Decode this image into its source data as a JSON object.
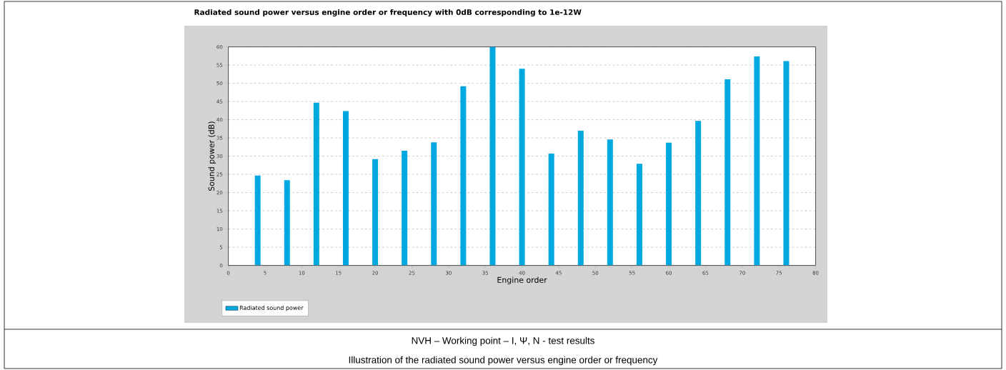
{
  "chart_data": {
    "type": "bar",
    "title": "Radiated sound power versus engine order or frequency with 0dB corresponding to 1e-12W",
    "xlabel": "Engine order",
    "ylabel": "Sound power (dB)",
    "x": [
      4,
      8,
      12,
      16,
      20,
      24,
      28,
      32,
      36,
      40,
      44,
      48,
      52,
      56,
      60,
      64,
      68,
      72,
      76
    ],
    "series": [
      {
        "name": "Radiated sound power",
        "color": "#00a8e0",
        "values": [
          24.7,
          23.4,
          44.7,
          42.4,
          29.2,
          31.5,
          33.8,
          49.2,
          60,
          54.0,
          30.7,
          37.0,
          34.6,
          27.9,
          33.7,
          39.7,
          51.1,
          57.4,
          56.1
        ]
      }
    ],
    "xlim": [
      0,
      80
    ],
    "ylim": [
      0,
      60
    ],
    "xticks": [
      0,
      5,
      10,
      15,
      20,
      25,
      30,
      35,
      40,
      45,
      50,
      55,
      60,
      65,
      70,
      75,
      80
    ],
    "yticks": [
      0,
      5,
      10,
      15,
      20,
      25,
      30,
      35,
      40,
      45,
      50,
      55,
      60
    ],
    "grid": "y",
    "legend": "bottom left",
    "annotations": [
      "NVH – Working point – I, Ψ, N - test results",
      "Illustration of the radiated sound power versus engine order or frequency"
    ]
  }
}
